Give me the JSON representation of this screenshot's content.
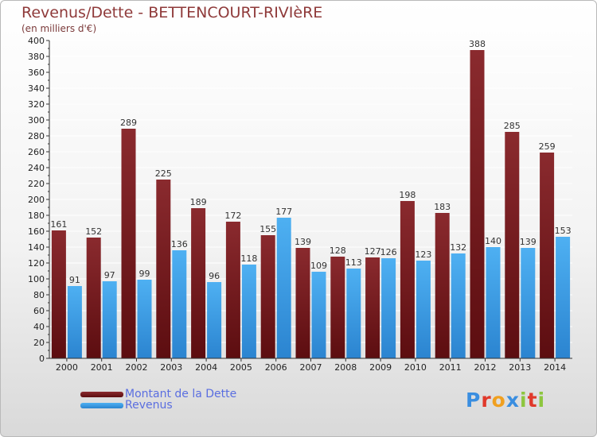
{
  "title": "Revenus/Dette - BETTENCOURT-RIVIèRE",
  "subtitle": "(en milliers d'€)",
  "colors": {
    "dette": "#7a1c1f",
    "revenus": "#3a9ee6",
    "axis": "#333333",
    "grid": "#ffffff"
  },
  "logo": {
    "text": "Proxiti",
    "letters": [
      "P",
      "r",
      "o",
      "x",
      "i",
      "t",
      "i"
    ],
    "colors": [
      "#3a8ee0",
      "#e0392b",
      "#f0a020",
      "#3a8ee0",
      "#8dc63f",
      "#e0392b",
      "#8dc63f"
    ]
  },
  "chart_data": {
    "type": "bar",
    "title": "Revenus/Dette - BETTENCOURT-RIVIèRE",
    "subtitle": "(en milliers d'€)",
    "categories": [
      "2000",
      "2001",
      "2002",
      "2003",
      "2004",
      "2005",
      "2006",
      "2007",
      "2008",
      "2009",
      "2010",
      "2011",
      "2012",
      "2013",
      "2014"
    ],
    "series": [
      {
        "name": "Montant de la Dette",
        "values": [
          161,
          152,
          289,
          225,
          189,
          172,
          155,
          139,
          128,
          127,
          198,
          183,
          388,
          285,
          259
        ]
      },
      {
        "name": "Revenus",
        "values": [
          91,
          97,
          99,
          136,
          96,
          118,
          177,
          109,
          113,
          126,
          123,
          132,
          140,
          139,
          153
        ]
      }
    ],
    "ylim": [
      0,
      400
    ],
    "yticks": [
      0,
      20,
      40,
      60,
      80,
      100,
      120,
      140,
      160,
      180,
      200,
      220,
      240,
      260,
      280,
      300,
      320,
      340,
      360,
      380,
      400
    ],
    "grid": true,
    "legend_position": "bottom-left"
  }
}
